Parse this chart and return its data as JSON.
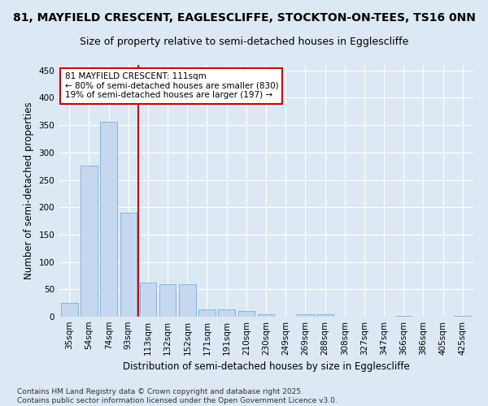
{
  "title1": "81, MAYFIELD CRESCENT, EAGLESCLIFFE, STOCKTON-ON-TEES, TS16 0NN",
  "title2": "Size of property relative to semi-detached houses in Egglescliffe",
  "xlabel": "Distribution of semi-detached houses by size in Egglescliffe",
  "ylabel": "Number of semi-detached properties",
  "categories": [
    "35sqm",
    "54sqm",
    "74sqm",
    "93sqm",
    "113sqm",
    "132sqm",
    "152sqm",
    "171sqm",
    "191sqm",
    "210sqm",
    "230sqm",
    "249sqm",
    "269sqm",
    "288sqm",
    "308sqm",
    "327sqm",
    "347sqm",
    "366sqm",
    "386sqm",
    "405sqm",
    "425sqm"
  ],
  "values": [
    25,
    276,
    356,
    190,
    63,
    60,
    60,
    13,
    13,
    10,
    5,
    0,
    5,
    5,
    0,
    0,
    0,
    2,
    0,
    0,
    2
  ],
  "bar_color": "#c5d8f0",
  "bar_edge_color": "#7bafd4",
  "vline_color": "#cc0000",
  "vline_x_index": 4,
  "annotation_title": "81 MAYFIELD CRESCENT: 111sqm",
  "annotation_line1": "← 80% of semi-detached houses are smaller (830)",
  "annotation_line2": "19% of semi-detached houses are larger (197) →",
  "annotation_box_facecolor": "#ffffff",
  "annotation_box_edgecolor": "#cc0000",
  "ylim": [
    0,
    460
  ],
  "yticks": [
    0,
    50,
    100,
    150,
    200,
    250,
    300,
    350,
    400,
    450
  ],
  "background_color": "#dde8f5",
  "grid_color": "#ffffff",
  "footer1": "Contains HM Land Registry data © Crown copyright and database right 2025.",
  "footer2": "Contains public sector information licensed under the Open Government Licence v3.0.",
  "title1_fontsize": 10,
  "title2_fontsize": 9,
  "axis_label_fontsize": 8.5,
  "tick_fontsize": 7.5,
  "annotation_fontsize": 7.5,
  "footer_fontsize": 6.5
}
